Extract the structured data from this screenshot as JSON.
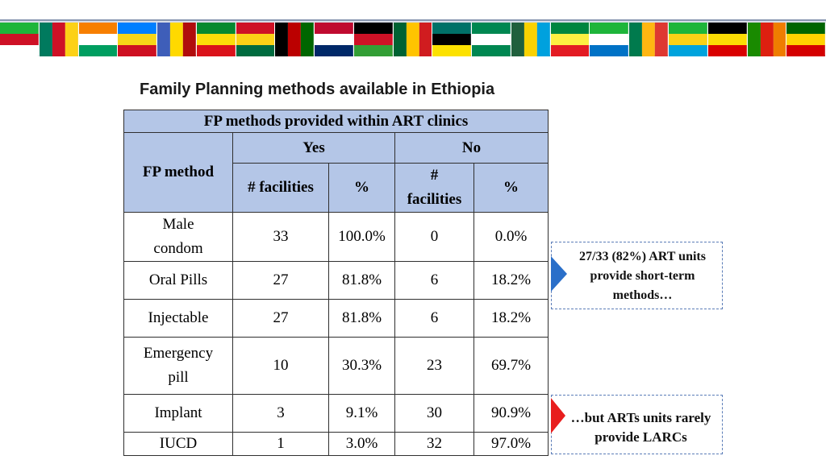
{
  "title": "Family Planning methods available in Ethiopia",
  "flags": [
    {
      "name": "burundi",
      "colors": [
        "#1eb53a",
        "#ce1126",
        "#ffffff"
      ]
    },
    {
      "name": "cameroon",
      "colors": [
        "#007a5e",
        "#ce1126",
        "#fcd116"
      ]
    },
    {
      "name": "cote-divoire",
      "colors": [
        "#f77f00",
        "#ffffff",
        "#009e60"
      ]
    },
    {
      "name": "drc",
      "colors": [
        "#007fff",
        "#f7d618",
        "#ce1021"
      ]
    },
    {
      "name": "eswatini",
      "colors": [
        "#3e5eb9",
        "#ffd900",
        "#b10c0c"
      ]
    },
    {
      "name": "ethiopia",
      "colors": [
        "#078930",
        "#fcdd09",
        "#da121a"
      ]
    },
    {
      "name": "ghana",
      "colors": [
        "#ce1126",
        "#fcd116",
        "#006b3f"
      ]
    },
    {
      "name": "kenya",
      "colors": [
        "#000000",
        "#bb0000",
        "#006600"
      ]
    },
    {
      "name": "liberia",
      "colors": [
        "#bf0a30",
        "#ffffff",
        "#002868"
      ]
    },
    {
      "name": "malawi",
      "colors": [
        "#000000",
        "#ce1126",
        "#339e35"
      ]
    },
    {
      "name": "mauritania",
      "colors": [
        "#006233",
        "#ffc400",
        "#d01c1f"
      ]
    },
    {
      "name": "mozambique",
      "colors": [
        "#007168",
        "#000000",
        "#fce100"
      ]
    },
    {
      "name": "nigeria",
      "colors": [
        "#008751",
        "#ffffff",
        "#008751"
      ]
    },
    {
      "name": "rwanda",
      "colors": [
        "#20603d",
        "#fad201",
        "#00a1de"
      ]
    },
    {
      "name": "senegal",
      "colors": [
        "#00853f",
        "#fdef42",
        "#e31b23"
      ]
    },
    {
      "name": "sierra-leone",
      "colors": [
        "#1eb53a",
        "#ffffff",
        "#0072c6"
      ]
    },
    {
      "name": "south-africa",
      "colors": [
        "#007a4d",
        "#ffb612",
        "#de3831"
      ]
    },
    {
      "name": "tanzania",
      "colors": [
        "#1eb53a",
        "#fcd116",
        "#00a3dd"
      ]
    },
    {
      "name": "uganda",
      "colors": [
        "#000000",
        "#fcdc04",
        "#d90000"
      ]
    },
    {
      "name": "zambia",
      "colors": [
        "#198a00",
        "#de2010",
        "#ef7d00"
      ]
    },
    {
      "name": "zimbabwe",
      "colors": [
        "#006400",
        "#ffd200",
        "#d40000"
      ]
    }
  ],
  "table": {
    "header_main": "FP methods provided within ART clinics",
    "col_method": "FP method",
    "col_yes": "Yes",
    "col_no": "No",
    "sub_yes_facilities": "# facilities",
    "sub_yes_pct": "%",
    "sub_no_hash": "#",
    "sub_no_facilities": "facilities",
    "sub_no_pct": "%",
    "rows": [
      {
        "method": "Male condom",
        "yes_n": "33",
        "yes_pct": "100.0%",
        "no_n": "0",
        "no_pct": "0.0%"
      },
      {
        "method": "Oral Pills",
        "yes_n": "27",
        "yes_pct": "81.8%",
        "no_n": "6",
        "no_pct": "18.2%"
      },
      {
        "method": "Injectable",
        "yes_n": "27",
        "yes_pct": "81.8%",
        "no_n": "6",
        "no_pct": "18.2%"
      },
      {
        "method": "Emergency pill",
        "yes_n": "10",
        "yes_pct": "30.3%",
        "no_n": "23",
        "no_pct": "69.7%"
      },
      {
        "method": "Implant",
        "yes_n": "3",
        "yes_pct": "9.1%",
        "no_n": "30",
        "no_pct": "90.9%"
      },
      {
        "method": "IUCD",
        "yes_n": "1",
        "yes_pct": "3.0%",
        "no_n": "32",
        "no_pct": "97.0%"
      }
    ]
  },
  "callouts": {
    "short_term": "27/33 (82%) ART units provide short-term methods…",
    "larc": "…but ARTs units rarely provide LARCs"
  },
  "colors": {
    "header_fill": "#b4c6e7",
    "arrow_blue": "#2a6fc9",
    "arrow_red": "#e81e1e"
  }
}
